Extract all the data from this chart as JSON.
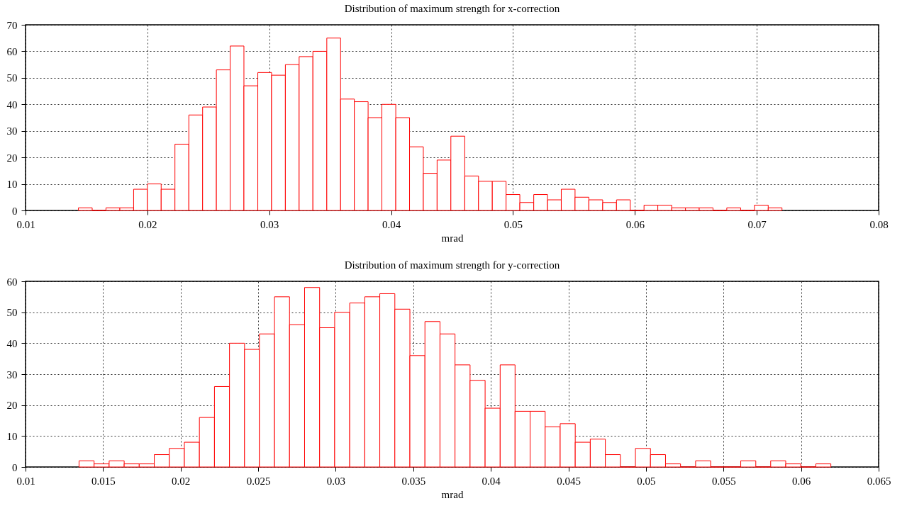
{
  "chart_data": [
    {
      "type": "histogram",
      "title": "Distribution of maximum strength for x-correction",
      "xlabel": "mrad",
      "color": "#ff0000",
      "grid": true,
      "bins": [
        0.01434,
        0.01547,
        0.0166,
        0.01774,
        0.01887,
        0.02,
        0.02113,
        0.02226,
        0.0234,
        0.02453,
        0.02566,
        0.02679,
        0.02792,
        0.02906,
        0.03019,
        0.03132,
        0.03245,
        0.03358,
        0.03472,
        0.03585,
        0.03698,
        0.03811,
        0.03924,
        0.04038,
        0.04151,
        0.04264,
        0.04377,
        0.0449,
        0.04604,
        0.04717,
        0.0483,
        0.04943,
        0.05056,
        0.0517,
        0.05283,
        0.05396,
        0.05509,
        0.05622,
        0.05736,
        0.05849,
        0.05962,
        0.06075,
        0.06188,
        0.06302,
        0.06415,
        0.06528,
        0.06641,
        0.06754,
        0.06868,
        0.06981,
        0.07094,
        0.07207
      ],
      "values": [
        1,
        0,
        1,
        1,
        8,
        10,
        8,
        25,
        36,
        39,
        53,
        62,
        47,
        52,
        51,
        55,
        58,
        60,
        65,
        42,
        41,
        35,
        40,
        35,
        24,
        14,
        19,
        28,
        13,
        11,
        11,
        6,
        3,
        6,
        4,
        8,
        5,
        4,
        3,
        4,
        0,
        2,
        2,
        1,
        1,
        1,
        0,
        1,
        0,
        2,
        1
      ],
      "xlim": [
        0.01,
        0.08
      ],
      "xticks": [
        0.01,
        0.02,
        0.03,
        0.04,
        0.05,
        0.06,
        0.07,
        0.08
      ],
      "ylim": [
        0,
        70
      ],
      "yticks": [
        0,
        10,
        20,
        30,
        40,
        50,
        60,
        70
      ]
    },
    {
      "type": "histogram",
      "title": "Distribution of maximum strength for y-correction",
      "xlabel": "mrad",
      "color": "#ff0000",
      "grid": true,
      "bins": [
        0.01345,
        0.01442,
        0.01539,
        0.01636,
        0.01733,
        0.0183,
        0.01927,
        0.02024,
        0.02121,
        0.02218,
        0.02315,
        0.02412,
        0.02508,
        0.02605,
        0.02702,
        0.02799,
        0.02896,
        0.02993,
        0.0309,
        0.03187,
        0.03284,
        0.03381,
        0.03478,
        0.03575,
        0.03672,
        0.03769,
        0.03866,
        0.03963,
        0.0406,
        0.04156,
        0.04253,
        0.0435,
        0.04447,
        0.04544,
        0.04641,
        0.04738,
        0.04835,
        0.04932,
        0.05029,
        0.05126,
        0.05223,
        0.0532,
        0.05417,
        0.05514,
        0.05611,
        0.05708,
        0.05804,
        0.05901,
        0.05998,
        0.06095,
        0.06192
      ],
      "values": [
        2,
        1,
        2,
        1,
        1,
        4,
        6,
        8,
        16,
        26,
        40,
        38,
        43,
        55,
        46,
        58,
        45,
        50,
        53,
        55,
        56,
        51,
        36,
        47,
        43,
        33,
        28,
        19,
        33,
        18,
        18,
        13,
        14,
        8,
        9,
        4,
        0,
        6,
        4,
        1,
        0,
        2,
        0,
        0,
        2,
        0,
        2,
        1,
        0,
        1
      ],
      "xlim": [
        0.01,
        0.065
      ],
      "xticks": [
        0.01,
        0.015,
        0.02,
        0.025,
        0.03,
        0.035,
        0.04,
        0.045,
        0.05,
        0.055,
        0.06,
        0.065
      ],
      "ylim": [
        0,
        60
      ],
      "yticks": [
        0,
        10,
        20,
        30,
        40,
        50,
        60
      ]
    }
  ]
}
